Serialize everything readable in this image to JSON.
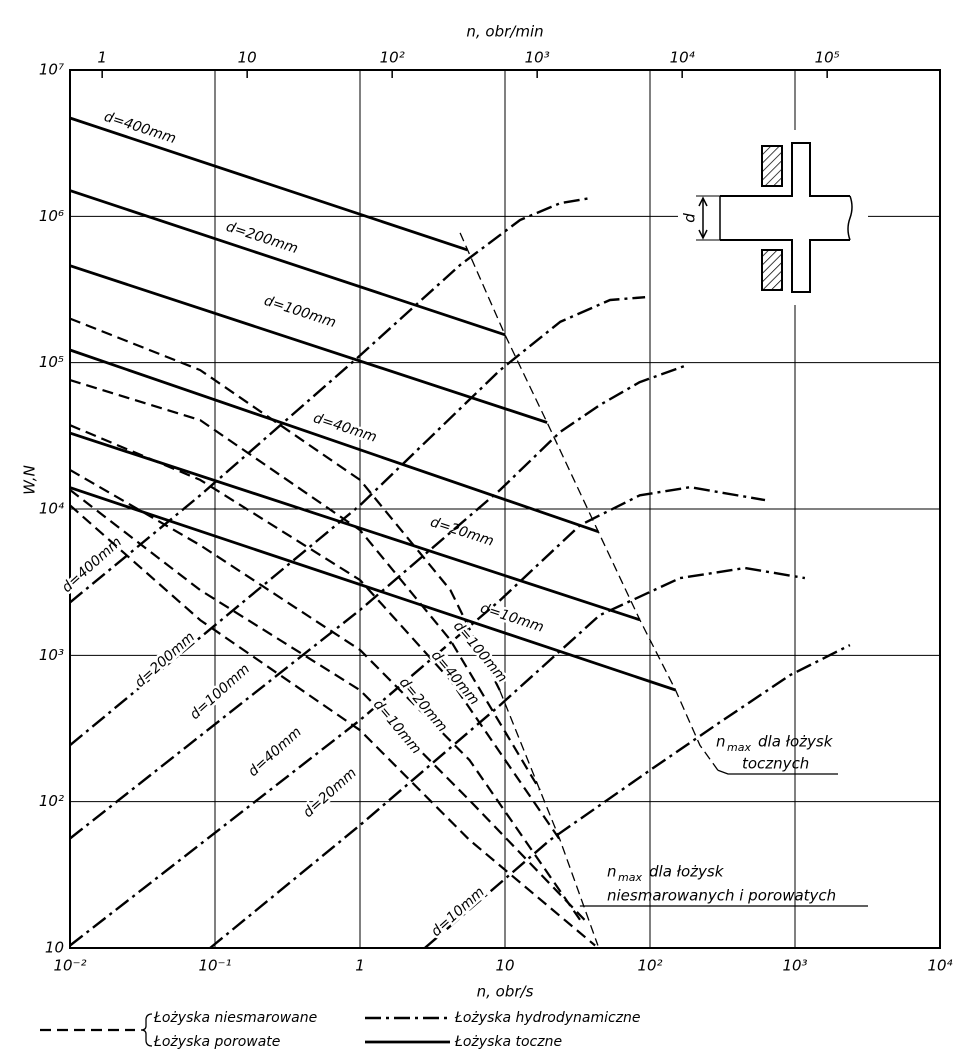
{
  "chart_data": {
    "type": "line",
    "xlabel": "n, obr/s",
    "x2label": "n, obr/min",
    "ylabel": "W,N",
    "log_x": true,
    "log_y": true,
    "grid": true,
    "xlim": [
      0.01,
      10000
    ],
    "x2lim": [
      0.6,
      600000
    ],
    "ylim": [
      10,
      10000000
    ],
    "xticks": [
      {
        "value": 0.01,
        "label": "10⁻²"
      },
      {
        "value": 0.1,
        "label": "10⁻¹"
      },
      1,
      10,
      {
        "value": 100,
        "label": "10²"
      },
      {
        "value": 1000,
        "label": "10³"
      },
      {
        "value": 10000,
        "label": "10⁴"
      }
    ],
    "x2ticks": [
      1,
      10,
      {
        "value": 100,
        "label": "10²"
      },
      {
        "value": 1000,
        "label": "10³"
      },
      {
        "value": 10000,
        "label": "10⁴"
      },
      {
        "value": 100000,
        "label": "10⁵"
      }
    ],
    "yticks": [
      10,
      {
        "value": 100,
        "label": "10²"
      },
      {
        "value": 1000,
        "label": "10³"
      },
      {
        "value": 10000,
        "label": "10⁴"
      },
      {
        "value": 100000,
        "label": "10⁵"
      },
      {
        "value": 1000000,
        "label": "10⁶"
      },
      {
        "value": 10000000,
        "label": "10⁷"
      }
    ],
    "inset_label": "d",
    "legend": [
      {
        "style": "dashed",
        "names": [
          "Łożyska niesmarowane",
          "Łożyska porowate"
        ]
      },
      {
        "style": "dashdot",
        "names": [
          "Łożyska hydrodynamiczne"
        ]
      },
      {
        "style": "solid",
        "names": [
          "Łożyska toczne"
        ]
      }
    ],
    "series": [
      {
        "label": "d=400mm",
        "style": "solid",
        "x": [
          0.01,
          5.5
        ],
        "values": [
          4700000,
          590000
        ]
      },
      {
        "label": "d=200mm",
        "style": "solid",
        "x": [
          0.01,
          10
        ],
        "values": [
          1500000,
          155000
        ]
      },
      {
        "label": "d=100mm",
        "style": "solid",
        "x": [
          0.01,
          19.5
        ],
        "values": [
          460000,
          39000
        ]
      },
      {
        "label": "d=40mm",
        "style": "solid",
        "x": [
          0.01,
          44
        ],
        "values": [
          122000,
          7000
        ]
      },
      {
        "label": "d=20mm",
        "style": "solid",
        "x": [
          0.01,
          85
        ],
        "values": [
          33000,
          1750
        ]
      },
      {
        "label": "d=10mm",
        "style": "solid",
        "x": [
          0.01,
          150
        ],
        "values": [
          14000,
          580
        ]
      },
      {
        "label": "d=400mm",
        "style": "dashdot",
        "x": [
          0.01,
          0.079,
          0.95,
          4.9,
          12.7,
          24,
          38.5
        ],
        "values": [
          2300,
          12400,
          107000,
          465000,
          944000,
          1230000,
          1330000
        ]
      },
      {
        "label": "d=200mm",
        "style": "dashdot",
        "x": [
          0.01,
          1,
          9.25,
          24,
          53,
          92.5
        ],
        "values": [
          243,
          10600,
          89000,
          190000,
          268000,
          280000
        ]
      },
      {
        "label": "d=100mm",
        "style": "dashdot",
        "x": [
          0.01,
          1,
          9.25,
          24,
          45,
          85,
          174
        ],
        "values": [
          56,
          2040,
          13500,
          33600,
          51300,
          73600,
          95000
        ]
      },
      {
        "label": "d=40mm",
        "style": "dashdot",
        "x": [
          0.01,
          1,
          9.25,
          33,
          85,
          189,
          621
        ],
        "values": [
          10.4,
          361,
          2380,
          7760,
          12400,
          14100,
          11500
        ]
      },
      {
        "label": "d=20mm",
        "style": "dashdot",
        "x": [
          0.0925,
          1,
          9.25,
          45,
          161,
          452,
          1170
        ],
        "values": [
          10,
          69,
          457,
          1880,
          3370,
          3950,
          3370
        ]
      },
      {
        "label": "d=10mm",
        "style": "dashdot",
        "x": [
          2.8,
          20.4,
          100,
          304,
          925,
          2390
        ],
        "values": [
          10,
          54.6,
          164,
          349,
          733,
          1175
        ]
      },
      {
        "style": "dashed",
        "x": [
          0.01,
          0.079,
          1,
          4.2,
          9.2
        ],
        "values": [
          200000,
          89000,
          15800,
          2790,
          578
        ]
      },
      {
        "style": "dashed",
        "x": [
          0.01,
          0.079,
          1,
          4.2,
          17.4
        ],
        "values": [
          76000,
          40500,
          7180,
          1270,
          120
        ]
      },
      {
        "label": "d=100mm",
        "style": "dashed",
        "x": [
          0.01,
          0.079,
          1,
          4.2,
          24
        ],
        "values": [
          37400,
          15800,
          3270,
          676,
          54.6
        ]
      },
      {
        "label": "d=40mm",
        "style": "dashed",
        "x": [
          0.01,
          0.079,
          1,
          5.7,
          33
        ],
        "values": [
          18500,
          5660,
          1090,
          192,
          15.5
        ]
      },
      {
        "label": "d=20mm",
        "style": "dashed",
        "x": [
          0.01,
          0.079,
          1,
          5.7,
          35.5
        ],
        "values": [
          13500,
          2790,
          578,
          102,
          15.5
        ]
      },
      {
        "label": "d=10mm",
        "style": "dashed",
        "x": [
          0.01,
          0.079,
          1,
          5.7,
          41.8
        ],
        "values": [
          10600,
          1740,
          308,
          54.6,
          10.4
        ]
      },
      {
        "style": "boundary",
        "x": [
          4.9,
          10,
          19.5,
          44,
          85,
          150,
          221,
          294
        ],
        "values": [
          770000,
          155000,
          39000,
          7000,
          1750,
          580,
          243,
          164
        ],
        "annotation": {
          "symbol": "n",
          "subscript": "max",
          "lines": [
            "dla łożysk",
            "tocznych"
          ]
        }
      },
      {
        "style": "boundary",
        "x": [
          9.2,
          17.4,
          24,
          43.7
        ],
        "values": [
          578,
          120,
          54.6,
          10.4
        ],
        "annotation": {
          "symbol": "n",
          "subscript": "max",
          "lines": [
            "dla łożysk",
            "niesmarowanych i porowatych"
          ]
        }
      }
    ]
  }
}
